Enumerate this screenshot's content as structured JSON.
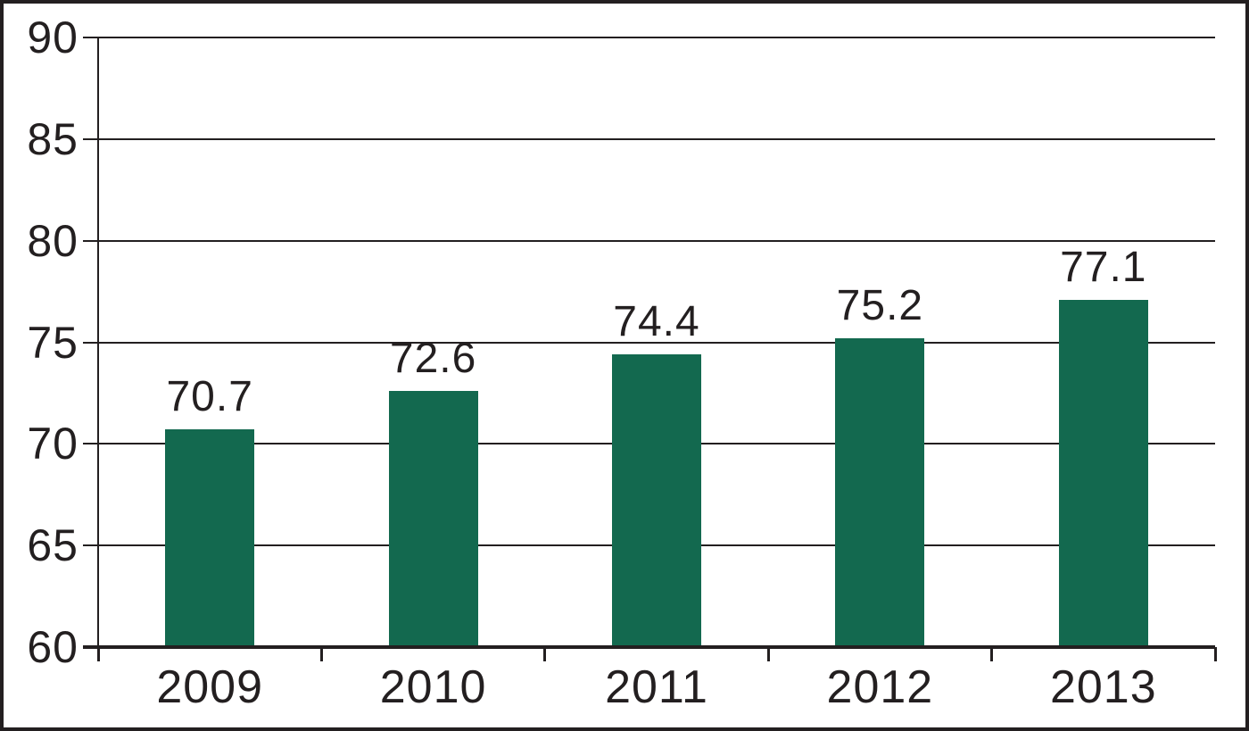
{
  "chart_data": {
    "type": "bar",
    "title": "",
    "xlabel": "",
    "ylabel": "",
    "categories": [
      "2009",
      "2010",
      "2011",
      "2012",
      "2013"
    ],
    "values": [
      70.7,
      72.6,
      74.4,
      75.2,
      77.1
    ],
    "value_labels": [
      "70.7",
      "72.6",
      "74.4",
      "75.2",
      "77.1"
    ],
    "ylim": [
      60,
      90
    ],
    "ytick_step": 5,
    "yticks": [
      60,
      65,
      70,
      75,
      80,
      85,
      90
    ],
    "ytick_labels": [
      "60",
      "65",
      "70",
      "75",
      "80",
      "85",
      "90"
    ],
    "grid": true,
    "legend": false,
    "bars_over_gridlines": true,
    "colors": {
      "bar": "#13694F",
      "line": "#231F20",
      "text": "#231F20",
      "background": "#FFFFFF",
      "border": "#231F20"
    }
  }
}
